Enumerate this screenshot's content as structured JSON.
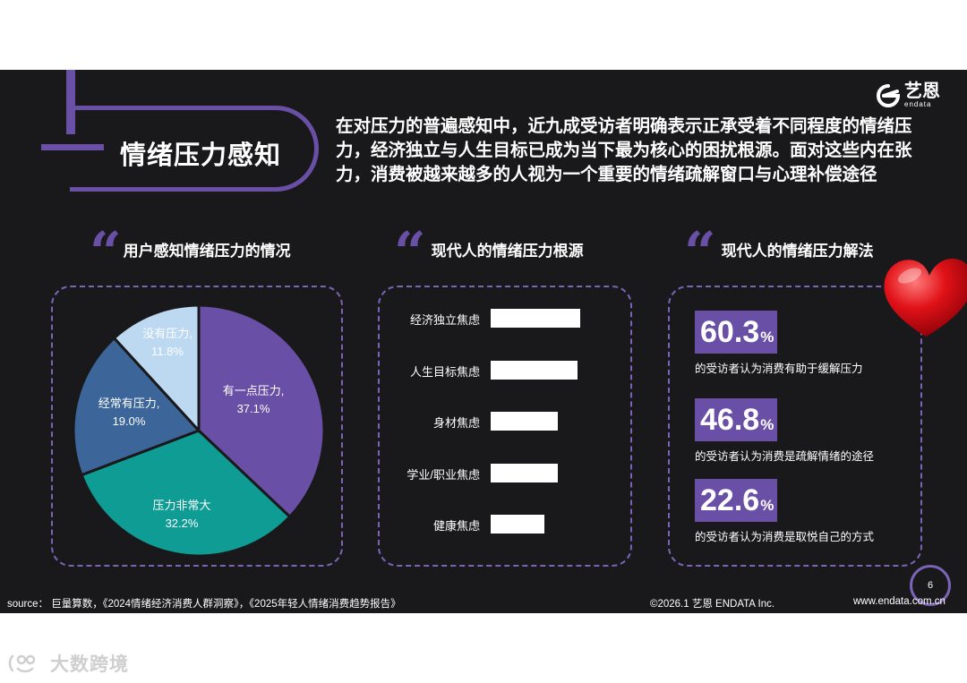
{
  "header": {
    "title": "情绪压力感知",
    "headline": [
      "在对压力的普遍感知中，近九成受访者明确表示正承受着不同程度的情绪压",
      "力，经济独立与人生目标已成为当下最为核心的困扰根源。面对这些内在张",
      "力，消费被越来越多的人视为一个重要的情绪疏解窗口与心理补偿途径"
    ]
  },
  "logo": {
    "cn": "艺恩",
    "en": "endata"
  },
  "sections": {
    "pie_title": "用户感知情绪压力的情况",
    "bar_title": "现代人的情绪压力根源",
    "stat_title": "现代人的情绪压力解法",
    "quote_glyph": "“"
  },
  "chart_data": [
    {
      "type": "pie",
      "title": "用户感知情绪压力的情况",
      "slices": [
        {
          "label": "有一点压力,",
          "value": 37.1,
          "value_label": "37.1%",
          "color": "#6a4fa6"
        },
        {
          "label": "压力非常大",
          "value": 32.2,
          "value_label": "32.2%",
          "color": "#0f9c94"
        },
        {
          "label": "经常有压力,",
          "value": 19.0,
          "value_label": "19.0%",
          "color": "#3c6699"
        },
        {
          "label": "没有压力,",
          "value": 11.8,
          "value_label": "11.8%",
          "color": "#bcd9f1"
        }
      ],
      "label_colors": {
        "dark": "#ffffff",
        "light": "#ffffff"
      }
    },
    {
      "type": "bar",
      "orientation": "horizontal",
      "title": "现代人的情绪压力根源",
      "categories": [
        "经济独立焦虑",
        "人生目标焦虑",
        "身材焦虑",
        "学业/职业焦虑",
        "健康焦虑"
      ],
      "values": [
        100,
        97,
        75,
        75,
        60
      ],
      "xlim": [
        0,
        100
      ],
      "value_labels_shown": false,
      "color": "#ffffff"
    }
  ],
  "stats": [
    {
      "number": "60.3",
      "unit": "%",
      "desc": "的受访者认为消费有助于缓解压力"
    },
    {
      "number": "46.8",
      "unit": "%",
      "desc": "的受访者认为消费是疏解情绪的途径"
    },
    {
      "number": "22.6",
      "unit": "%",
      "desc": "的受访者认为消费是取悦自己的方式"
    }
  ],
  "page_number": "6",
  "footer": {
    "source": "source： 巨量算数，《2024情绪经济消费人群洞察》，《2025年轻人情绪消费趋势报告》",
    "copyright": "©2026.1  艺恩 ENDATA Inc.",
    "website": "www.endata.com.cn"
  },
  "watermark": {
    "text": "大数跨境"
  },
  "colors": {
    "accent": "#6a4fa6",
    "background": "#19191b",
    "dashed": "#7b63b8"
  }
}
